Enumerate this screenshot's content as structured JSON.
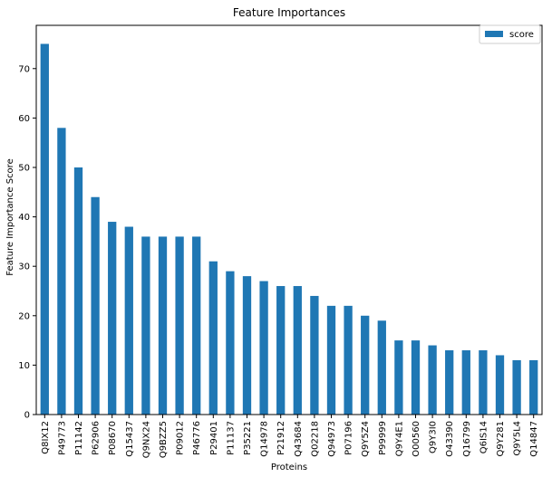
{
  "chart_data": {
    "type": "bar",
    "title": "Feature Importances",
    "xlabel": "Proteins",
    "ylabel": "Feature Importance Score",
    "categories": [
      "Q8IX12",
      "P49773",
      "P11142",
      "P62906",
      "P08670",
      "Q15437",
      "Q9NX24",
      "Q9BZZ5",
      "P09012",
      "P46776",
      "P29401",
      "P11137",
      "P35221",
      "Q14978",
      "P21912",
      "Q43684",
      "Q02218",
      "Q94973",
      "P07196",
      "Q9Y5Z4",
      "P99999",
      "Q9Y4E1",
      "O00560",
      "Q9Y3I0",
      "O43390",
      "Q16799",
      "Q6IS14",
      "Q9Y281",
      "Q9Y5L4",
      "Q14847"
    ],
    "series": [
      {
        "name": "score",
        "values": [
          75,
          58,
          50,
          44,
          39,
          38,
          36,
          36,
          36,
          36,
          31,
          29,
          28,
          27,
          26,
          26,
          24,
          22,
          22,
          20,
          19,
          15,
          15,
          14,
          13,
          13,
          13,
          12,
          11,
          11
        ]
      }
    ],
    "ylim": [
      0,
      78.75
    ],
    "yticks": [
      0,
      10,
      20,
      30,
      40,
      50,
      60,
      70
    ],
    "grid": false,
    "legend_position": "top-right",
    "bar_color": "#1f77b4"
  }
}
